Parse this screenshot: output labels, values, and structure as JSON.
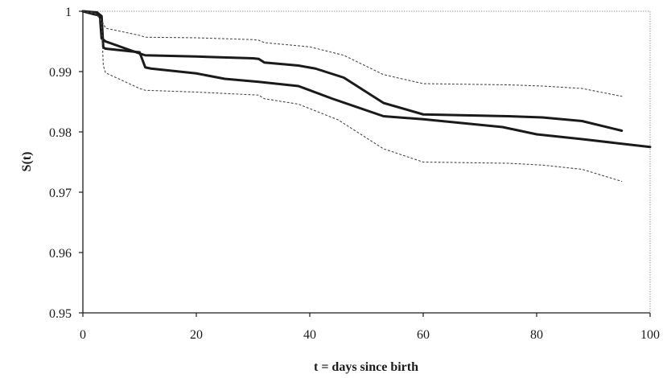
{
  "chart_data": {
    "type": "line",
    "title": "",
    "xlabel": "t = days since birth",
    "ylabel": "S(t)",
    "xlim": [
      0,
      100
    ],
    "ylim": [
      0.95,
      1
    ],
    "x_ticks": [
      0,
      20,
      40,
      60,
      80,
      100
    ],
    "y_ticks": [
      0.95,
      0.96,
      0.97,
      0.98,
      0.99,
      1
    ],
    "y_tick_labels": [
      "0.95",
      "0.96",
      "0.97",
      "0.98",
      "0.99",
      "1"
    ],
    "grid": false,
    "series": [
      {
        "style": "solid-thick",
        "color": "#1a1a1a",
        "x": [
          0,
          2,
          3,
          3.3,
          4,
          10,
          11,
          20,
          30,
          31,
          32,
          38,
          41,
          46,
          53,
          60,
          75,
          81,
          88,
          95
        ],
        "y": [
          1,
          0.9995,
          0.9993,
          0.9955,
          0.995,
          0.993,
          0.9927,
          0.9925,
          0.9922,
          0.9921,
          0.9915,
          0.991,
          0.9905,
          0.989,
          0.9848,
          0.9829,
          0.9826,
          0.9824,
          0.9818,
          0.9802
        ]
      },
      {
        "style": "solid-thick",
        "color": "#1a1a1a",
        "x": [
          0,
          2.5,
          3.3,
          3.6,
          4,
          10,
          11,
          12,
          20,
          25,
          31,
          38,
          44,
          53,
          60,
          74,
          80,
          88,
          100
        ],
        "y": [
          1,
          0.9998,
          0.9992,
          0.994,
          0.9938,
          0.9932,
          0.9907,
          0.9905,
          0.9897,
          0.9888,
          0.9883,
          0.9876,
          0.9855,
          0.9826,
          0.9821,
          0.9808,
          0.9796,
          0.9788,
          0.9775
        ]
      },
      {
        "style": "dotted",
        "color": "#444444",
        "x": [
          0,
          2,
          3.3,
          4,
          10,
          11,
          20,
          30,
          31,
          32,
          40,
          46,
          53,
          60,
          75,
          81,
          88,
          95
        ],
        "y": [
          1,
          0.9998,
          0.9985,
          0.9972,
          0.996,
          0.9957,
          0.9956,
          0.9953,
          0.9952,
          0.9948,
          0.9941,
          0.9927,
          0.9895,
          0.988,
          0.9878,
          0.9876,
          0.9872,
          0.9859
        ]
      },
      {
        "style": "dotted",
        "color": "#444444",
        "x": [
          0,
          2.5,
          3.3,
          3.6,
          4,
          10,
          11,
          20,
          31,
          32,
          38,
          45,
          53,
          60,
          75,
          81,
          88,
          95
        ],
        "y": [
          1,
          0.9995,
          0.998,
          0.991,
          0.9898,
          0.9872,
          0.9869,
          0.9866,
          0.9861,
          0.9855,
          0.9846,
          0.982,
          0.9772,
          0.975,
          0.9748,
          0.9745,
          0.9738,
          0.9718
        ]
      }
    ]
  }
}
